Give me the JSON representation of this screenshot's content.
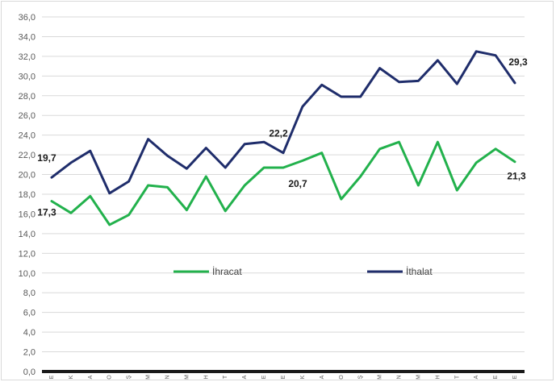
{
  "chart_data": {
    "type": "line",
    "title": "",
    "xlabel": "",
    "ylabel": "",
    "ylim": [
      0,
      36
    ],
    "ytick_step": 2,
    "ytick_labels": [
      "0,0",
      "2,0",
      "4,0",
      "6,0",
      "8,0",
      "10,0",
      "12,0",
      "14,0",
      "16,0",
      "18,0",
      "20,0",
      "22,0",
      "24,0",
      "26,0",
      "28,0",
      "30,0",
      "32,0",
      "34,0",
      "36,0"
    ],
    "categories": [
      "E",
      "K",
      "A",
      "O",
      "Ş",
      "M",
      "N",
      "M",
      "H",
      "T",
      "A",
      "E",
      "E",
      "K",
      "A",
      "O",
      "Ş",
      "M",
      "N",
      "M",
      "H",
      "T",
      "A",
      "E",
      "E"
    ],
    "grid": true,
    "legend_position": "middle",
    "series": [
      {
        "name": "İhracat",
        "color": "#22b14c",
        "values": [
          17.3,
          16.1,
          17.8,
          14.9,
          15.9,
          18.9,
          18.7,
          16.4,
          19.8,
          16.3,
          18.9,
          20.7,
          20.7,
          21.4,
          22.2,
          17.5,
          19.8,
          22.6,
          23.3,
          18.9,
          23.3,
          18.4,
          21.2,
          22.6,
          21.3
        ]
      },
      {
        "name": "İthalat",
        "color": "#1f2d6b",
        "values": [
          19.7,
          21.2,
          22.4,
          18.1,
          19.3,
          23.6,
          21.9,
          20.6,
          22.7,
          20.7,
          23.1,
          23.3,
          22.2,
          26.9,
          29.1,
          27.9,
          27.9,
          30.8,
          29.4,
          29.5,
          31.6,
          29.2,
          32.5,
          32.1,
          29.3
        ]
      }
    ],
    "annotations": [
      {
        "text": "17,3",
        "series": 0,
        "index": 0,
        "placement": "below-left"
      },
      {
        "text": "20,7",
        "series": 0,
        "index": 12,
        "placement": "below-right"
      },
      {
        "text": "21,3",
        "series": 0,
        "index": 24,
        "placement": "below"
      },
      {
        "text": "19,7",
        "series": 1,
        "index": 0,
        "placement": "above-left"
      },
      {
        "text": "22,2",
        "series": 1,
        "index": 12,
        "placement": "above-left"
      },
      {
        "text": "29,3",
        "series": 1,
        "index": 24,
        "placement": "above"
      }
    ]
  }
}
